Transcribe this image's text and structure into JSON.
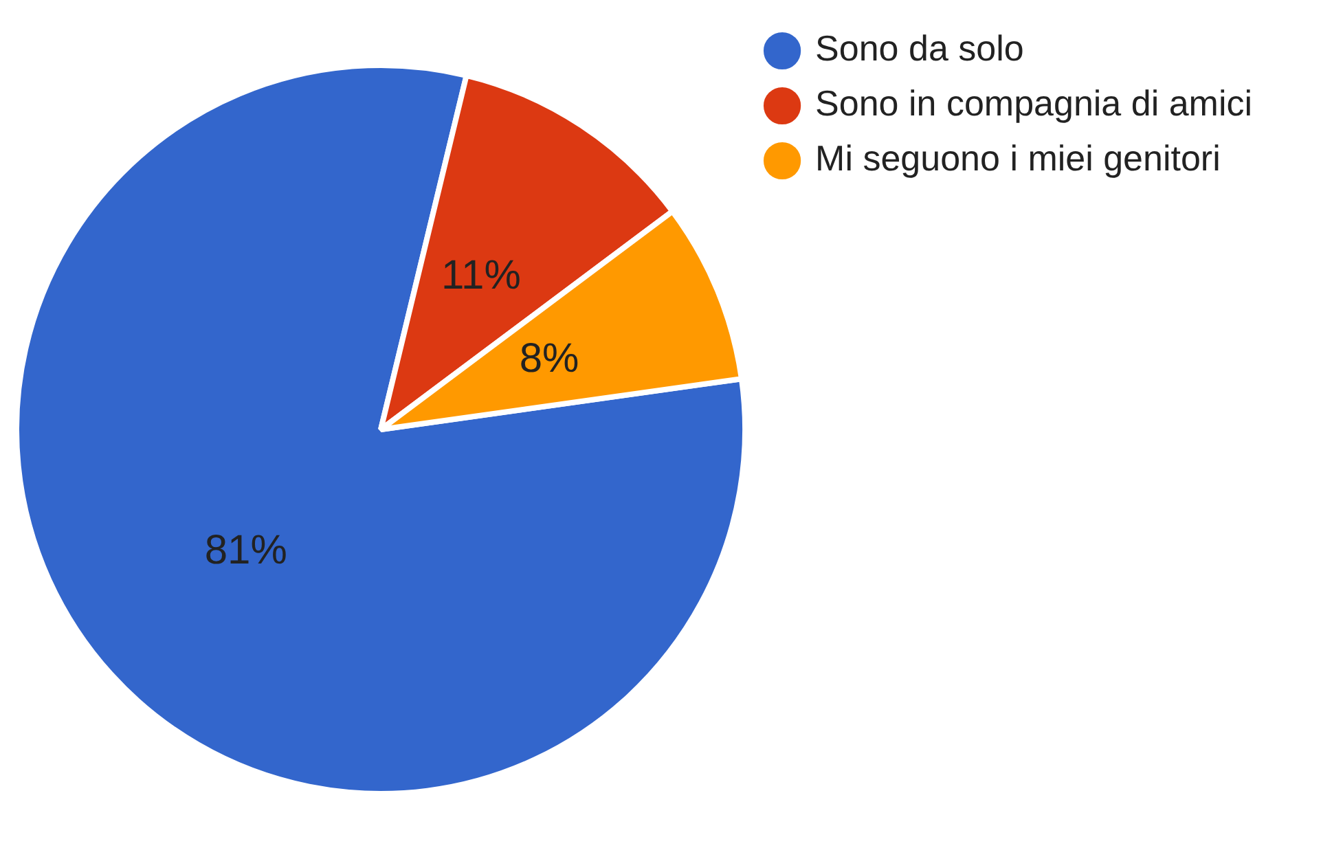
{
  "chart_data": {
    "type": "pie",
    "categories": [
      "Sono da solo",
      "Sono in compagnia di amici",
      "Mi seguono i miei genitori"
    ],
    "values": [
      81,
      11,
      8
    ],
    "colors": [
      "#3366cc",
      "#dc3912",
      "#ff9900"
    ],
    "value_labels": [
      "81%",
      "11%",
      "8%"
    ],
    "legend": "top right"
  }
}
